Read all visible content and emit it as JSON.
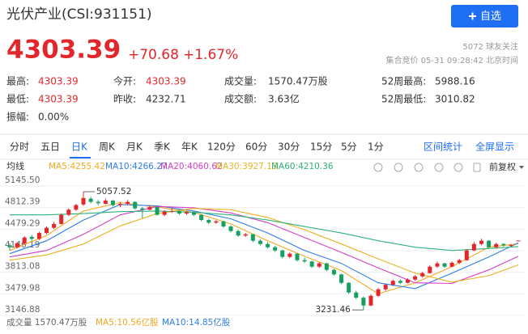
{
  "header": {
    "title": "光伏产业(CSI:931151)",
    "button": "自选",
    "price": "4303.39",
    "change": "+70.68",
    "change_pct": "+1.67%",
    "followers": "5072 球友关注",
    "status": "集合竞价 05-31 09:28:42 北京时间"
  },
  "stats": [
    {
      "label": "最高:",
      "value": "4303.39",
      "color": "#e3262b"
    },
    {
      "label": "今开:",
      "value": "4303.39",
      "color": "#e3262b"
    },
    {
      "label": "成交量:",
      "value": "1570.47万股",
      "color": "#333333"
    },
    {
      "label": "52周最高:",
      "value": "5988.16",
      "color": "#333333"
    },
    {
      "label": "最低:",
      "value": "4303.39",
      "color": "#e3262b"
    },
    {
      "label": "昨收:",
      "value": "4232.71",
      "color": "#333333"
    },
    {
      "label": "成交额:",
      "value": "3.63亿",
      "color": "#333333"
    },
    {
      "label": "52周最低:",
      "value": "3010.82",
      "color": "#333333"
    },
    {
      "label": "振幅:",
      "value": "0.00%",
      "color": "#333333"
    }
  ],
  "tabs": [
    "分时",
    "五日",
    "日K",
    "周K",
    "月K",
    "季K",
    "年K",
    "120分",
    "60分",
    "30分",
    "15分",
    "5分",
    "1分"
  ],
  "active_tab": "日K",
  "tab_actions": [
    "区间统计",
    "全屏显示"
  ],
  "legend_title": "均线",
  "adjust": "前复权",
  "footer": [
    {
      "text": "成交量 1570.47万股",
      "color": "#666666"
    },
    {
      "text": "MA5:10.56亿股",
      "color": "#f5a623"
    },
    {
      "text": "MA10:14.85亿股",
      "color": "#2b7de9"
    }
  ],
  "chart_data": {
    "type": "candlestick",
    "ylim": [
      3146.88,
      5145.5
    ],
    "yticks": [
      {
        "value": 5145.5,
        "label": "5145.50"
      },
      4812.39,
      4479.29,
      4146.19,
      3813.08,
      3479.98,
      3146.88
    ],
    "grid": true,
    "up_color": "#e3262b",
    "down_color": "#14a05f",
    "high_label": "5057.52",
    "low_label": "3231.46",
    "ohlc": [
      [
        4230,
        4260,
        4150,
        4200
      ],
      [
        4200,
        4280,
        4180,
        4260
      ],
      [
        4260,
        4370,
        4240,
        4350
      ],
      [
        4360,
        4390,
        4300,
        4330
      ],
      [
        4330,
        4440,
        4310,
        4420
      ],
      [
        4420,
        4520,
        4400,
        4500
      ],
      [
        4500,
        4590,
        4480,
        4560
      ],
      [
        4560,
        4720,
        4550,
        4700
      ],
      [
        4700,
        4800,
        4680,
        4780
      ],
      [
        4780,
        4870,
        4760,
        4850
      ],
      [
        4860,
        5057.52,
        4840,
        4960
      ],
      [
        4950,
        4980,
        4880,
        4900
      ],
      [
        4900,
        4930,
        4850,
        4880
      ],
      [
        4870,
        4950,
        4860,
        4920
      ],
      [
        4920,
        4930,
        4830,
        4850
      ],
      [
        4850,
        4900,
        4820,
        4870
      ],
      [
        4870,
        4930,
        4850,
        4900
      ],
      [
        4900,
        4910,
        4780,
        4800
      ],
      [
        4800,
        4820,
        4650,
        4780
      ],
      [
        4780,
        4850,
        4770,
        4820
      ],
      [
        4820,
        4830,
        4690,
        4700
      ],
      [
        4700,
        4770,
        4680,
        4750
      ],
      [
        4750,
        4800,
        4730,
        4760
      ],
      [
        4760,
        4780,
        4700,
        4720
      ],
      [
        4720,
        4760,
        4700,
        4740
      ],
      [
        4740,
        4750,
        4680,
        4700
      ],
      [
        4700,
        4710,
        4600,
        4620
      ],
      [
        4620,
        4640,
        4560,
        4580
      ],
      [
        4580,
        4620,
        4560,
        4600
      ],
      [
        4600,
        4610,
        4500,
        4520
      ],
      [
        4520,
        4540,
        4430,
        4450
      ],
      [
        4450,
        4470,
        4360,
        4380
      ],
      [
        4380,
        4420,
        4360,
        4400
      ],
      [
        4400,
        4410,
        4280,
        4300
      ],
      [
        4300,
        4320,
        4230,
        4250
      ],
      [
        4250,
        4280,
        4180,
        4200
      ],
      [
        4200,
        4220,
        4130,
        4150
      ],
      [
        4150,
        4160,
        4030,
        4050
      ],
      [
        4050,
        4120,
        4030,
        4100
      ],
      [
        4100,
        4110,
        3980,
        4000
      ],
      [
        4000,
        4040,
        3960,
        3980
      ],
      [
        3980,
        3990,
        3880,
        3900
      ],
      [
        3900,
        3970,
        3880,
        3950
      ],
      [
        3950,
        3960,
        3830,
        3850
      ],
      [
        3850,
        3870,
        3760,
        3780
      ],
      [
        3780,
        3790,
        3630,
        3650
      ],
      [
        3650,
        3660,
        3480,
        3500
      ],
      [
        3500,
        3530,
        3400,
        3420
      ],
      [
        3420,
        3440,
        3231.46,
        3300
      ],
      [
        3300,
        3470,
        3290,
        3450
      ],
      [
        3450,
        3570,
        3430,
        3550
      ],
      [
        3550,
        3640,
        3530,
        3620
      ],
      [
        3620,
        3700,
        3600,
        3680
      ],
      [
        3680,
        3700,
        3630,
        3650
      ],
      [
        3650,
        3720,
        3640,
        3700
      ],
      [
        3700,
        3770,
        3680,
        3750
      ],
      [
        3750,
        3820,
        3730,
        3800
      ],
      [
        3800,
        3920,
        3790,
        3900
      ],
      [
        3900,
        3980,
        3880,
        3950
      ],
      [
        3950,
        3960,
        3880,
        3900
      ],
      [
        3900,
        3980,
        3890,
        3960
      ],
      [
        3960,
        4020,
        3940,
        4000
      ],
      [
        4000,
        4170,
        3990,
        4150
      ],
      [
        4150,
        4280,
        4140,
        4250
      ],
      [
        4250,
        4330,
        4230,
        4300
      ],
      [
        4300,
        4310,
        4190,
        4200
      ],
      [
        4200,
        4270,
        4180,
        4250
      ],
      [
        4250,
        4260,
        4210,
        4230
      ],
      [
        4230,
        4250,
        4210,
        4232.71
      ],
      [
        4303.39,
        4303.39,
        4303.39,
        4303.39
      ]
    ],
    "ma_x": [
      0,
      5,
      10,
      15,
      20,
      25,
      30,
      35,
      40,
      45,
      50,
      55,
      60,
      65,
      69
    ],
    "series": [
      {
        "name": "MA5:4255.42",
        "color": "#f5a623",
        "values": [
          4150,
          4380,
          4760,
          4890,
          4820,
          4740,
          4560,
          4300,
          4060,
          3840,
          3480,
          3650,
          3900,
          4200,
          4255.42
        ]
      },
      {
        "name": "MA10:4266.27",
        "color": "#2b7de9",
        "values": [
          4100,
          4300,
          4620,
          4860,
          4840,
          4760,
          4640,
          4420,
          4150,
          3950,
          3650,
          3560,
          3800,
          4050,
          4266.27
        ]
      },
      {
        "name": "MA20:4060.62",
        "color": "#d53fc8",
        "values": [
          4050,
          4150,
          4400,
          4700,
          4830,
          4810,
          4730,
          4580,
          4350,
          4120,
          3880,
          3650,
          3640,
          3850,
          4060.62
        ]
      },
      {
        "name": "MA30:3927.13",
        "color": "#e8b220",
        "values": [
          4000,
          4080,
          4250,
          4530,
          4720,
          4800,
          4780,
          4660,
          4470,
          4250,
          4020,
          3800,
          3660,
          3760,
          3927.13
        ]
      },
      {
        "name": "MA60:4210.36",
        "color": "#2fb37a",
        "values": [
          4700,
          4700,
          4720,
          4750,
          4760,
          4740,
          4700,
          4620,
          4520,
          4420,
          4300,
          4200,
          4150,
          4180,
          4210.36
        ]
      }
    ]
  }
}
